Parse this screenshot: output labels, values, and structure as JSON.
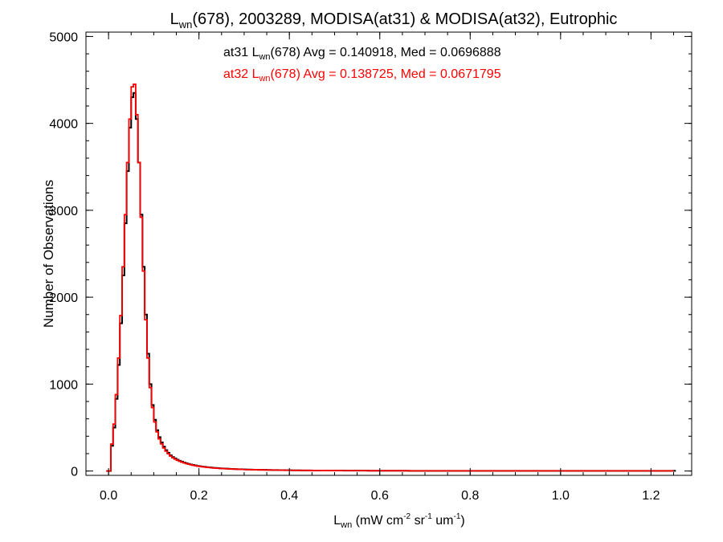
{
  "chart_data": {
    "type": "histogram-step",
    "title_parts": {
      "pre": "L",
      "sub": "wn",
      "post": "(678), 2003289, MODISA(at31) & MODISA(at32), Eutrophic"
    },
    "xlabel_parts": {
      "pre": "L",
      "sub": "wn",
      "mid1": " (mW cm",
      "sup1": "-2",
      "mid2": " sr",
      "sup2": "-1",
      "mid3": " um",
      "sup3": "-1",
      "post": ")"
    },
    "ylabel": "Number of Observations",
    "xlim": [
      -0.05,
      1.29
    ],
    "ylim": [
      -50,
      5050
    ],
    "xticks": [
      0.0,
      0.2,
      0.4,
      0.6,
      0.8,
      1.0,
      1.2
    ],
    "xtick_labels": [
      "0.0",
      "0.2",
      "0.4",
      "0.6",
      "0.8",
      "1.0",
      "1.2"
    ],
    "yticks": [
      0,
      1000,
      2000,
      3000,
      4000,
      5000
    ],
    "ytick_labels": [
      "0",
      "1000",
      "2000",
      "3000",
      "4000",
      "5000"
    ],
    "xminor_step": 0.05,
    "yminor_step": 200,
    "bin_width": 0.005,
    "bin_start": -0.005,
    "series": [
      {
        "name": "at31",
        "color": "#000000",
        "annotation": {
          "pre": "at31 L",
          "sub": "wn",
          "post": "(678) Avg = 0.140918, Med = 0.0696888"
        },
        "x_start": -0.005,
        "values": [
          0,
          0,
          290,
          500,
          830,
          1220,
          1700,
          2250,
          2850,
          3450,
          3950,
          4300,
          4350,
          4050,
          3550,
          2950,
          2350,
          1800,
          1350,
          1000,
          760,
          590,
          470,
          390,
          330,
          280,
          240,
          210,
          180,
          160,
          145,
          130,
          118,
          108,
          98,
          90,
          82,
          75,
          70,
          64,
          59,
          55,
          51,
          48,
          45,
          42,
          40,
          37,
          35,
          33,
          31,
          30,
          28,
          27,
          25,
          24,
          23,
          22,
          21,
          20,
          19,
          18,
          17,
          17,
          16,
          15,
          15,
          14,
          14,
          13,
          13,
          12,
          12,
          11,
          11,
          11,
          10,
          10,
          10,
          9,
          9,
          9,
          8,
          8,
          8,
          8,
          7,
          7,
          7,
          7,
          7,
          6,
          6,
          6,
          6,
          6,
          6,
          5,
          5,
          5,
          5,
          5,
          5,
          5,
          5,
          4,
          4,
          4,
          4,
          4,
          4,
          4,
          4,
          4,
          4,
          4,
          3,
          3,
          3,
          3,
          3,
          3,
          3,
          3,
          3,
          3,
          3,
          3,
          3,
          3,
          3,
          3,
          3,
          3,
          2,
          2,
          2,
          2,
          2,
          2,
          2,
          2,
          2,
          2,
          2,
          2,
          2,
          2,
          2,
          2,
          2,
          2,
          2,
          2,
          2,
          2,
          2,
          2,
          2,
          2,
          2,
          2,
          2,
          2,
          2,
          2,
          2,
          2,
          2,
          2,
          2,
          2,
          2,
          2,
          2,
          2,
          2,
          2,
          2,
          2,
          2,
          2,
          2,
          2,
          2,
          2,
          2,
          2,
          2,
          2,
          2,
          2,
          2,
          2,
          2,
          2,
          2,
          2,
          2,
          2,
          2,
          2,
          2,
          2,
          2,
          2,
          2,
          2,
          2,
          2,
          2,
          2,
          2,
          2,
          2,
          2,
          2,
          2,
          2,
          2,
          2,
          2,
          2,
          2,
          2,
          2,
          2,
          2,
          2,
          2,
          2,
          2,
          2,
          2,
          2,
          2,
          2,
          2,
          2,
          2,
          2,
          2,
          2,
          2,
          2,
          2,
          2,
          2,
          2,
          2,
          2,
          2
        ]
      },
      {
        "name": "at32",
        "color": "#ff0000",
        "annotation": {
          "pre": "at32 L",
          "sub": "wn",
          "post": "(678) Avg = 0.138725, Med = 0.0671795"
        },
        "x_start": -0.005,
        "values": [
          0,
          0,
          310,
          540,
          880,
          1300,
          1790,
          2350,
          2950,
          3550,
          4050,
          4420,
          4450,
          4100,
          3550,
          2920,
          2300,
          1740,
          1300,
          960,
          730,
          565,
          450,
          370,
          312,
          265,
          228,
          198,
          172,
          152,
          137,
          123,
          112,
          102,
          93,
          85,
          78,
          72,
          66,
          61,
          56,
          52,
          49,
          46,
          43,
          40,
          38,
          35,
          33,
          31,
          30,
          28,
          27,
          25,
          24,
          23,
          22,
          21,
          20,
          19,
          18,
          17,
          16,
          16,
          15,
          15,
          14,
          14,
          13,
          13,
          12,
          12,
          11,
          11,
          11,
          10,
          10,
          10,
          9,
          9,
          9,
          8,
          8,
          8,
          8,
          7,
          7,
          7,
          7,
          7,
          6,
          6,
          6,
          6,
          6,
          6,
          5,
          5,
          5,
          5,
          5,
          5,
          5,
          5,
          4,
          4,
          4,
          4,
          4,
          4,
          4,
          4,
          4,
          4,
          4,
          3,
          3,
          3,
          3,
          3,
          3,
          3,
          3,
          3,
          3,
          3,
          3,
          3,
          3,
          3,
          3,
          3,
          3,
          2,
          2,
          2,
          2,
          2,
          2,
          2,
          2,
          2,
          2,
          2,
          2,
          2,
          2,
          2,
          2,
          2,
          2,
          2,
          2,
          2,
          2,
          2,
          2,
          2,
          2,
          2,
          2,
          2,
          2,
          2,
          2,
          2,
          2,
          2,
          2,
          2,
          2,
          2,
          2,
          2,
          2,
          2,
          2,
          2,
          2,
          2,
          2,
          2,
          2,
          2,
          2,
          2,
          2,
          2,
          2,
          2,
          2,
          2,
          2,
          2,
          2,
          2,
          2,
          2,
          2,
          2,
          2,
          2,
          2,
          2,
          2,
          2,
          2,
          2,
          2,
          2,
          2,
          2,
          2,
          2,
          2,
          2,
          2,
          2,
          2,
          2,
          2,
          2,
          2,
          2,
          2,
          2,
          2,
          2,
          2,
          2,
          2,
          2,
          2,
          2,
          2,
          2,
          2,
          2,
          2,
          2,
          2,
          2,
          2,
          2,
          2,
          2,
          2,
          2,
          2,
          2,
          2
        ]
      }
    ],
    "grid": false,
    "legend": "none"
  }
}
